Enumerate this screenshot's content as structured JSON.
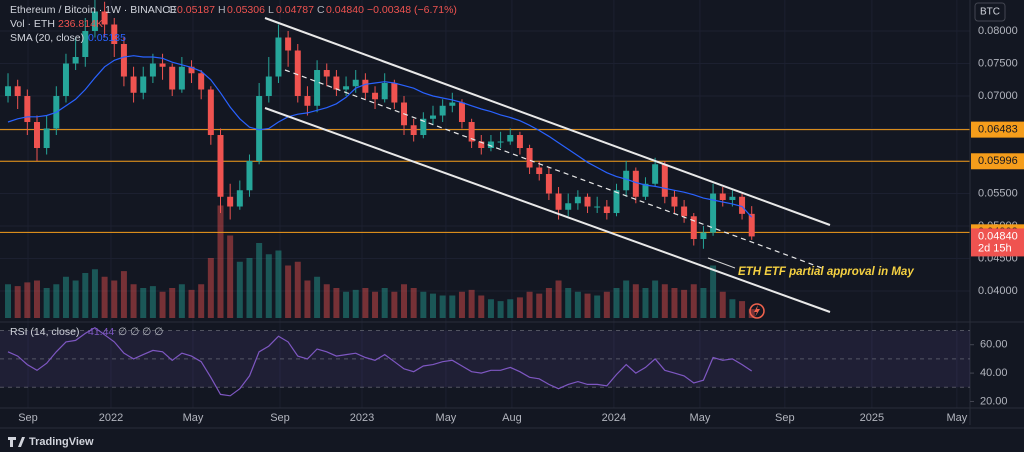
{
  "chart_data": {
    "type": "candlestick",
    "legend": {
      "symbol": "Ethereum / Bitcoin · 1W · BINANCE",
      "open_key": "O",
      "open": "0.05187",
      "high_key": "H",
      "high": "0.05306",
      "low_key": "L",
      "low": "0.04787",
      "close_key": "C",
      "close": "0.04840",
      "change": "−0.00348 (−6.71%)"
    },
    "volume_legend": {
      "name": "Vol · ETH",
      "value": "236.814K"
    },
    "sma_legend": {
      "name": "SMA (20, close)",
      "value": "0.05135"
    },
    "rsi_legend": {
      "name": "RSI (14, close)",
      "value": "41.44",
      "extra": "∅ ∅ ∅ ∅"
    },
    "currency": "BTC",
    "countdown": "2d 15h",
    "annotation": "ETH ETF partial approval in May",
    "brand": "TradingView",
    "up_color": "#26a69a",
    "down_color": "#ef5350",
    "sma_color": "#2962ff",
    "rsi_color": "#7e57c2",
    "price_line_color": "#f59d1b",
    "first_open": 0.07,
    "close": [
      0.0715,
      0.07,
      0.066,
      0.062,
      0.065,
      0.07,
      0.075,
      0.076,
      0.08,
      0.083,
      0.081,
      0.078,
      0.073,
      0.0705,
      0.073,
      0.075,
      0.0745,
      0.071,
      0.0745,
      0.0735,
      0.071,
      0.064,
      0.0545,
      0.053,
      0.0555,
      0.06,
      0.07,
      0.073,
      0.079,
      0.077,
      0.07,
      0.0685,
      0.074,
      0.073,
      0.071,
      0.0715,
      0.0725,
      0.0705,
      0.0695,
      0.072,
      0.069,
      0.0655,
      0.064,
      0.0665,
      0.067,
      0.0685,
      0.069,
      0.066,
      0.063,
      0.062,
      0.063,
      0.063,
      0.064,
      0.062,
      0.059,
      0.058,
      0.055,
      0.0525,
      0.0535,
      0.0545,
      0.053,
      0.053,
      0.052,
      0.0555,
      0.0585,
      0.0545,
      0.0565,
      0.0595,
      0.0545,
      0.053,
      0.0515,
      0.048,
      0.049,
      0.055,
      0.054,
      0.0545,
      0.05187,
      0.0484
    ],
    "high": [
      0.0735,
      0.0725,
      0.071,
      0.067,
      0.067,
      0.0715,
      0.0765,
      0.079,
      0.082,
      0.085,
      0.0845,
      0.082,
      0.079,
      0.0745,
      0.0745,
      0.0765,
      0.0765,
      0.075,
      0.076,
      0.0755,
      0.074,
      0.0715,
      0.065,
      0.0565,
      0.057,
      0.061,
      0.072,
      0.076,
      0.081,
      0.08,
      0.078,
      0.0715,
      0.0755,
      0.075,
      0.074,
      0.073,
      0.074,
      0.0735,
      0.0715,
      0.0735,
      0.0725,
      0.07,
      0.0665,
      0.0675,
      0.0685,
      0.0695,
      0.0705,
      0.0695,
      0.0665,
      0.064,
      0.064,
      0.0645,
      0.065,
      0.0645,
      0.0625,
      0.06,
      0.059,
      0.056,
      0.055,
      0.0555,
      0.055,
      0.0545,
      0.054,
      0.0565,
      0.06,
      0.059,
      0.0575,
      0.0605,
      0.06,
      0.0555,
      0.054,
      0.052,
      0.05,
      0.0565,
      0.056,
      0.0555,
      0.055,
      0.05306
    ],
    "low": [
      0.069,
      0.068,
      0.064,
      0.06,
      0.061,
      0.064,
      0.069,
      0.074,
      0.0745,
      0.079,
      0.079,
      0.076,
      0.0715,
      0.069,
      0.0695,
      0.072,
      0.0725,
      0.07,
      0.0705,
      0.072,
      0.0695,
      0.0625,
      0.052,
      0.051,
      0.0525,
      0.0545,
      0.0595,
      0.069,
      0.072,
      0.0745,
      0.069,
      0.067,
      0.0675,
      0.0715,
      0.07,
      0.07,
      0.0705,
      0.0695,
      0.068,
      0.069,
      0.068,
      0.064,
      0.063,
      0.0635,
      0.0655,
      0.066,
      0.0675,
      0.065,
      0.062,
      0.061,
      0.0615,
      0.062,
      0.0625,
      0.061,
      0.058,
      0.057,
      0.054,
      0.051,
      0.0515,
      0.0525,
      0.052,
      0.052,
      0.051,
      0.0515,
      0.0545,
      0.0535,
      0.054,
      0.056,
      0.0535,
      0.052,
      0.0505,
      0.047,
      0.0465,
      0.0485,
      0.053,
      0.053,
      0.051,
      0.04787
    ],
    "sma": [
      0.066,
      0.0665,
      0.0668,
      0.0668,
      0.067,
      0.0675,
      0.0685,
      0.0695,
      0.071,
      0.0728,
      0.0745,
      0.0755,
      0.076,
      0.0762,
      0.076,
      0.076,
      0.0758,
      0.0752,
      0.0748,
      0.0744,
      0.0738,
      0.0725,
      0.0705,
      0.0683,
      0.0665,
      0.0652,
      0.0648,
      0.065,
      0.066,
      0.0668,
      0.0672,
      0.0674,
      0.0678,
      0.0682,
      0.0688,
      0.0698,
      0.0712,
      0.0718,
      0.072,
      0.0722,
      0.072,
      0.0716,
      0.0712,
      0.0705,
      0.07,
      0.0697,
      0.0694,
      0.069,
      0.0685,
      0.068,
      0.0676,
      0.0671,
      0.0667,
      0.0662,
      0.0655,
      0.0647,
      0.0638,
      0.0628,
      0.0618,
      0.0608,
      0.0598,
      0.059,
      0.0582,
      0.0576,
      0.0572,
      0.0567,
      0.0563,
      0.0561,
      0.0558,
      0.0555,
      0.0552,
      0.0548,
      0.0543,
      0.054,
      0.0537,
      0.0534,
      0.053,
      0.05135
    ],
    "volume": [
      900,
      850,
      950,
      1000,
      800,
      900,
      1100,
      1000,
      1200,
      1300,
      1100,
      1000,
      1250,
      900,
      800,
      850,
      700,
      800,
      900,
      750,
      900,
      1600,
      3000,
      2200,
      1500,
      1600,
      2000,
      1700,
      1800,
      1400,
      1500,
      1000,
      1100,
      900,
      800,
      700,
      750,
      800,
      700,
      800,
      700,
      900,
      800,
      700,
      650,
      600,
      600,
      700,
      750,
      600,
      500,
      450,
      500,
      550,
      700,
      650,
      800,
      1000,
      800,
      700,
      650,
      600,
      700,
      800,
      1000,
      900,
      800,
      1000,
      900,
      800,
      750,
      900,
      800,
      1400,
      700,
      500,
      450,
      236.814
    ],
    "rsi": [
      55,
      52,
      46,
      42,
      47,
      55,
      62,
      63,
      68,
      72,
      67,
      62,
      54,
      50,
      53,
      56,
      55,
      49,
      54,
      52,
      48,
      37,
      25,
      24,
      29,
      38,
      55,
      59,
      66,
      62,
      52,
      50,
      57,
      55,
      52,
      53,
      54,
      51,
      49,
      53,
      48,
      43,
      41,
      45,
      46,
      48,
      49,
      45,
      41,
      40,
      42,
      42,
      44,
      41,
      37,
      36,
      32,
      29,
      32,
      34,
      32,
      32,
      31,
      39,
      46,
      40,
      44,
      50,
      42,
      40,
      38,
      33,
      35,
      51,
      49,
      50,
      46,
      41.44
    ],
    "xlim": [
      -0.83,
      99.6
    ],
    "xticks": [
      {
        "value": 2.07,
        "label": "Sep"
      },
      {
        "value": 10.66,
        "label": "2022"
      },
      {
        "value": 19.15,
        "label": "May"
      },
      {
        "value": 28.16,
        "label": "Sep"
      },
      {
        "value": 36.65,
        "label": "2023"
      },
      {
        "value": 45.34,
        "label": "May"
      },
      {
        "value": 52.17,
        "label": "Aug"
      },
      {
        "value": 62.73,
        "label": "2024"
      },
      {
        "value": 71.64,
        "label": "May"
      },
      {
        "value": 80.43,
        "label": "Sep"
      },
      {
        "value": 89.44,
        "label": "2025"
      },
      {
        "value": 98.24,
        "label": "May"
      }
    ],
    "ylim": [
      0.03585,
      0.08477
    ],
    "yticks": [
      {
        "value": 0.08,
        "label": "0.08000"
      },
      {
        "value": 0.075,
        "label": "0.07500"
      },
      {
        "value": 0.07,
        "label": "0.07000"
      },
      {
        "value": 0.065,
        "label": "0.06500"
      },
      {
        "value": 0.06,
        "label": "0.06000"
      },
      {
        "value": 0.055,
        "label": "0.05500"
      },
      {
        "value": 0.05,
        "label": "0.05000"
      },
      {
        "value": 0.045,
        "label": "0.04500"
      },
      {
        "value": 0.04,
        "label": "0.04000"
      }
    ],
    "price_lines": [
      0.06483,
      0.05996,
      0.04903
    ],
    "volume_ylim": [
      0,
      4000
    ],
    "rsi_ylim": [
      15.4,
      76
    ],
    "rsi_yticks": [
      {
        "value": 60,
        "label": "60.00"
      },
      {
        "value": 40,
        "label": "40.00"
      },
      {
        "value": 20,
        "label": "20.00"
      }
    ],
    "rsi_bands": [
      70,
      50,
      30
    ]
  }
}
